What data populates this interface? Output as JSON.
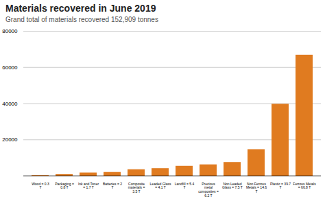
{
  "chart_data": {
    "type": "bar",
    "title": "Materials recovered in June 2019",
    "subtitle": "Grand total of materials recovered 152,909 tonnes",
    "categories": [
      "Wood = 0.3\nT",
      "Packaging =\n0.8 T",
      "Ink and Toner\n= 1.7 T",
      "Batteries = 2\nT",
      "Composite\nmaterials =\n3.5 T",
      "Leaded Glass\n= 4.1 T",
      "Landfill = 5.4\nT",
      "Precious\nmetal\ncomposites =\n6.2 T",
      "Non Leaded\nGlass = 7.5 T",
      "Non Ferrous\nMetals = 14.6\nT",
      "Plastic = 39.7\nT",
      "Ferrous Metals\n= 66.8 T"
    ],
    "values": [
      300,
      800,
      1700,
      2000,
      3500,
      4100,
      5400,
      6200,
      7500,
      14600,
      39700,
      66800
    ],
    "color": "#e07b20",
    "ylim": [
      0,
      80000
    ],
    "yticks": [
      {
        "value": 0,
        "label": ""
      },
      20000,
      40000,
      60000,
      80000
    ],
    "grid": true
  }
}
